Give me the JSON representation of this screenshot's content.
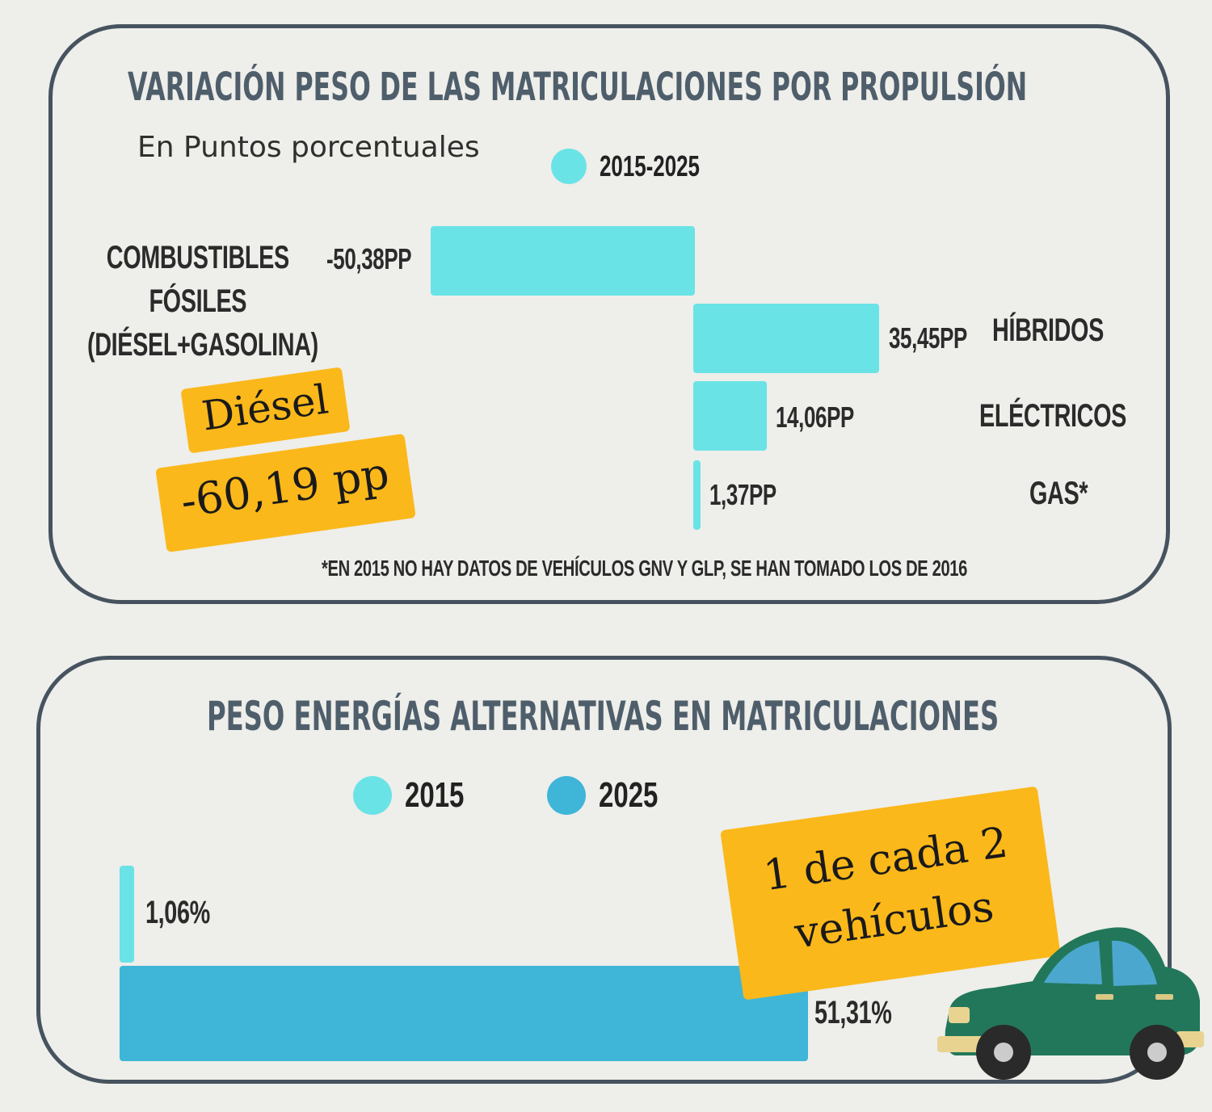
{
  "chart_data": [
    {
      "type": "bar",
      "orientation": "horizontal",
      "title": "VARIACIÓN PESO DE LAS MATRICULACIONES POR PROPULSIÓN",
      "subtitle": "En Puntos porcentuales",
      "legend": [
        {
          "label": "2015-2025",
          "color": "#6ae3e6"
        }
      ],
      "categories": [
        "COMBUSTIBLES FÓSILES (DIÉSEL+GASOLINA)",
        "HÍBRIDOS",
        "ELÉCTRICOS",
        "GAS*"
      ],
      "category_lines": [
        [
          "COMBUSTIBLES",
          "FÓSILES",
          "(DIÉSEL+GASOLINA)"
        ],
        [
          "HÍBRIDOS"
        ],
        [
          "ELÉCTRICOS"
        ],
        [
          "GAS*"
        ]
      ],
      "values": [
        -50.38,
        35.45,
        14.06,
        1.37
      ],
      "value_labels": [
        "-50,38PP",
        "35,45PP",
        "14,06PP",
        "1,37PP"
      ],
      "unit": "PP",
      "color": "#6ae3e6",
      "footnote": "*EN 2015 NO HAY DATOS DE VEHÍCULOS GNV Y GLP, SE HAN TOMADO LOS DE 2016",
      "annotation": {
        "line1": "Diésel",
        "line2": "-60,19 pp"
      }
    },
    {
      "type": "bar",
      "orientation": "horizontal",
      "title": "PESO ENERGÍAS ALTERNATIVAS EN MATRICULACIONES",
      "legend": [
        {
          "label": "2015",
          "color": "#6ae3e6"
        },
        {
          "label": "2025",
          "color": "#3fb5d8"
        }
      ],
      "categories": [
        "2015",
        "2025"
      ],
      "values": [
        1.06,
        51.31
      ],
      "value_labels": [
        "1,06%",
        "51,31%"
      ],
      "unit": "%",
      "annotation": {
        "line1": "1 de cada 2",
        "line2": "vehículos"
      }
    }
  ]
}
